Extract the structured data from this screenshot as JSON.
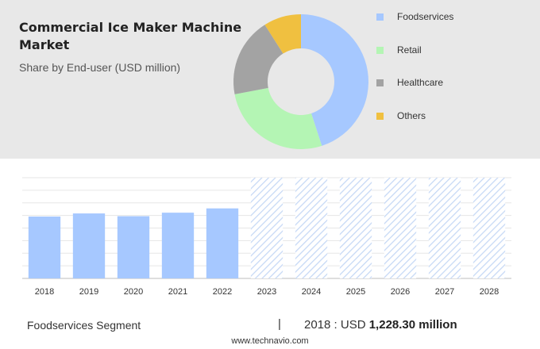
{
  "header": {
    "title": "Commercial Ice Maker Machine Market",
    "subtitle": "Share by End-user (USD million)"
  },
  "chart_data": [
    {
      "type": "pie",
      "subtype": "donut",
      "title": "Commercial Ice Maker Machine Market",
      "subtitle": "Share by End-user (USD million)",
      "legend_position": "right",
      "labels": [
        "Foodservices",
        "Retail",
        "Healthcare",
        "Others"
      ],
      "values": [
        45,
        27,
        19,
        9
      ],
      "colors": [
        "#a6c8ff",
        "#b4f5b4",
        "#a3a3a3",
        "#f0c040"
      ]
    },
    {
      "type": "bar",
      "categories": [
        "2018",
        "2019",
        "2020",
        "2021",
        "2022",
        "2023",
        "2024",
        "2025",
        "2026",
        "2027",
        "2028"
      ],
      "values": [
        1228.3,
        1290,
        1235,
        1305,
        1390,
        null,
        null,
        null,
        null,
        null,
        null
      ],
      "forecast_categories": [
        "2023",
        "2024",
        "2025",
        "2026",
        "2027",
        "2028"
      ],
      "ylim": [
        0,
        2000
      ],
      "grid": true,
      "bar_color": "#a6c8ff",
      "forecast_color": "#c5d8f5"
    }
  ],
  "footer": {
    "segment_label": "Foodservices Segment",
    "divider": "|",
    "year_prefix": "2018 : USD",
    "value": "1,228.30 million",
    "source": "www.technavio.com"
  }
}
